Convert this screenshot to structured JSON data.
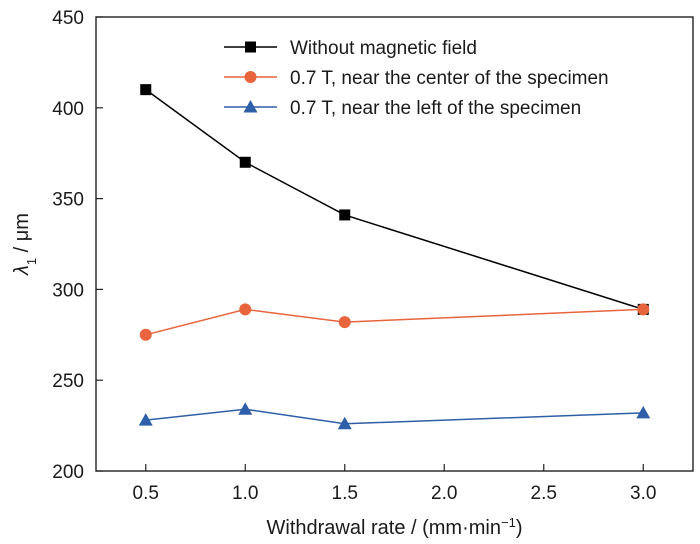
{
  "chart_data": {
    "type": "line",
    "xlabel": {
      "prefix": "Withdrawal rate / (mm·min",
      "superscript": "−1",
      "suffix": ")"
    },
    "ylabel": {
      "symbol": "λ",
      "subscript": "1",
      "unit": " / μm"
    },
    "xlim": [
      0.25,
      3.25
    ],
    "ylim": [
      200,
      450
    ],
    "xticks": [
      0.5,
      1.0,
      1.5,
      2.0,
      2.5,
      3.0
    ],
    "xtick_labels": [
      "0.5",
      "1.0",
      "1.5",
      "2.0",
      "2.5",
      "3.0"
    ],
    "yticks": [
      200,
      250,
      300,
      350,
      400,
      450
    ],
    "ytick_labels": [
      "200",
      "250",
      "300",
      "350",
      "400",
      "450"
    ],
    "grid": false,
    "legend_position": "top-right",
    "series": [
      {
        "name": "Without magnetic field",
        "color": "#000000",
        "marker": "square",
        "x": [
          0.5,
          1.0,
          1.5,
          3.0
        ],
        "y": [
          410,
          370,
          341,
          289
        ]
      },
      {
        "name": "0.7 T, near the center of the specimen",
        "color": "#e8643c",
        "marker": "circle",
        "x": [
          0.5,
          1.0,
          1.5,
          3.0
        ],
        "y": [
          275,
          289,
          282,
          289
        ]
      },
      {
        "name": "0.7 T, near the left of the specimen",
        "color": "#2e5fa8",
        "marker": "triangle",
        "x": [
          0.5,
          1.0,
          1.5,
          3.0
        ],
        "y": [
          228,
          234,
          226,
          232
        ]
      }
    ]
  }
}
